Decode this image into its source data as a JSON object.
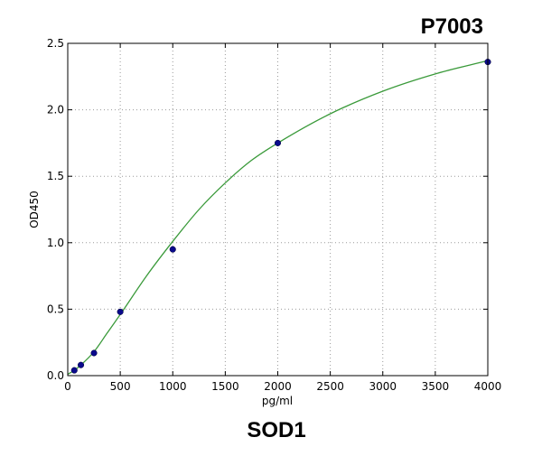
{
  "chart_data": {
    "type": "scatter",
    "title": "P7003",
    "caption": "SOD1",
    "xlabel": "pg/ml",
    "ylabel": "OD450",
    "xlim": [
      0,
      4000
    ],
    "ylim": [
      0,
      2.5
    ],
    "xticks": [
      0,
      500,
      1000,
      1500,
      2000,
      2500,
      3000,
      3500,
      4000
    ],
    "yticks": [
      0.0,
      0.5,
      1.0,
      1.5,
      2.0,
      2.5
    ],
    "xtick_labels": [
      "0",
      "500",
      "1000",
      "1500",
      "2000",
      "2500",
      "3000",
      "3500",
      "4000"
    ],
    "ytick_labels": [
      "0.0",
      "0.5",
      "1.0",
      "1.5",
      "2.0",
      "2.5"
    ],
    "grid": true,
    "series": [
      {
        "kind": "points",
        "color": "#0a0a8c",
        "x": [
          62.5,
          125,
          250,
          500,
          1000,
          2000,
          4000
        ],
        "y": [
          0.04,
          0.08,
          0.17,
          0.48,
          0.95,
          1.75,
          2.36
        ]
      },
      {
        "kind": "fitted-curve",
        "color": "#3a9a3a",
        "x": [
          0,
          62.5,
          125,
          250,
          375,
          500,
          750,
          1000,
          1250,
          1500,
          1750,
          2000,
          2500,
          3000,
          3500,
          4000
        ],
        "y": [
          0.01,
          0.04,
          0.08,
          0.18,
          0.32,
          0.46,
          0.75,
          1.01,
          1.25,
          1.45,
          1.62,
          1.75,
          1.97,
          2.14,
          2.27,
          2.37
        ]
      }
    ]
  }
}
